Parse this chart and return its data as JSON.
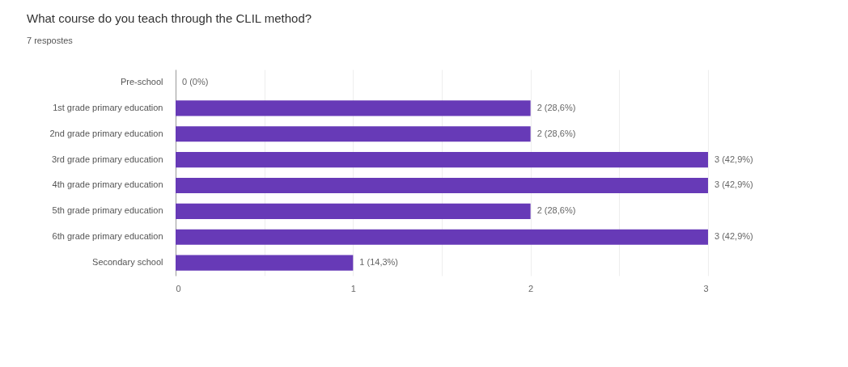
{
  "chart_data": {
    "type": "bar",
    "orientation": "horizontal",
    "title": "What course do you teach through the CLIL method?",
    "subtitle": "7 respostes",
    "categories": [
      "Pre-school",
      "1st grade primary education",
      "2nd grade primary education",
      "3rd grade primary education",
      "4th grade primary education",
      "5th grade primary education",
      "6th grade primary education",
      "Secondary school"
    ],
    "values": [
      0,
      2,
      2,
      3,
      3,
      2,
      3,
      1
    ],
    "value_labels": [
      "0 (0%)",
      "2 (28,6%)",
      "2 (28,6%)",
      "3 (42,9%)",
      "3 (42,9%)",
      "2 (28,6%)",
      "3 (42,9%)",
      "1 (14,3%)"
    ],
    "color": "#673ab7",
    "xlim": [
      0,
      3
    ],
    "xticks": [
      0,
      {
        "value": 0.5,
        "label": null
      },
      1,
      {
        "value": 1.5,
        "label": null
      },
      2,
      {
        "value": 2.5,
        "label": null
      },
      3
    ],
    "grid": "x"
  }
}
